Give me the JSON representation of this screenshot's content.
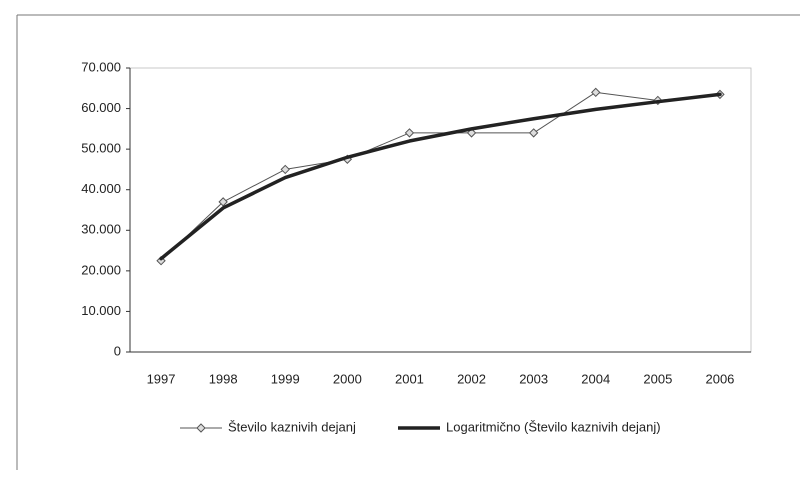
{
  "chart_data": {
    "type": "line",
    "categories": [
      "1997",
      "1998",
      "1999",
      "2000",
      "2001",
      "2002",
      "2003",
      "2004",
      "2005",
      "2006"
    ],
    "series": [
      {
        "name": "Število kaznivih dejanj",
        "color": "#555555",
        "marker": "diamond",
        "values": [
          22500,
          37000,
          45000,
          47500,
          54000,
          54000,
          54000,
          64000,
          62000,
          63500
        ]
      },
      {
        "name": "Logaritmično (Število kaznivih dejanj)",
        "color": "#222222",
        "values": [
          23000,
          35500,
          43000,
          48000,
          52000,
          55000,
          57500,
          59800,
          61700,
          63500
        ]
      }
    ],
    "ylim": [
      0,
      70000
    ],
    "yticks": [
      0,
      {
        "value": 10000,
        "label": "10.000"
      },
      {
        "value": 20000,
        "label": "20.000"
      },
      {
        "value": 30000,
        "label": "30.000"
      },
      {
        "value": 40000,
        "label": "40.000"
      },
      {
        "value": 50000,
        "label": "50.000"
      },
      {
        "value": 60000,
        "label": "60.000"
      },
      {
        "value": 70000,
        "label": "70.000"
      }
    ],
    "grid": false,
    "legend": "bottom"
  }
}
